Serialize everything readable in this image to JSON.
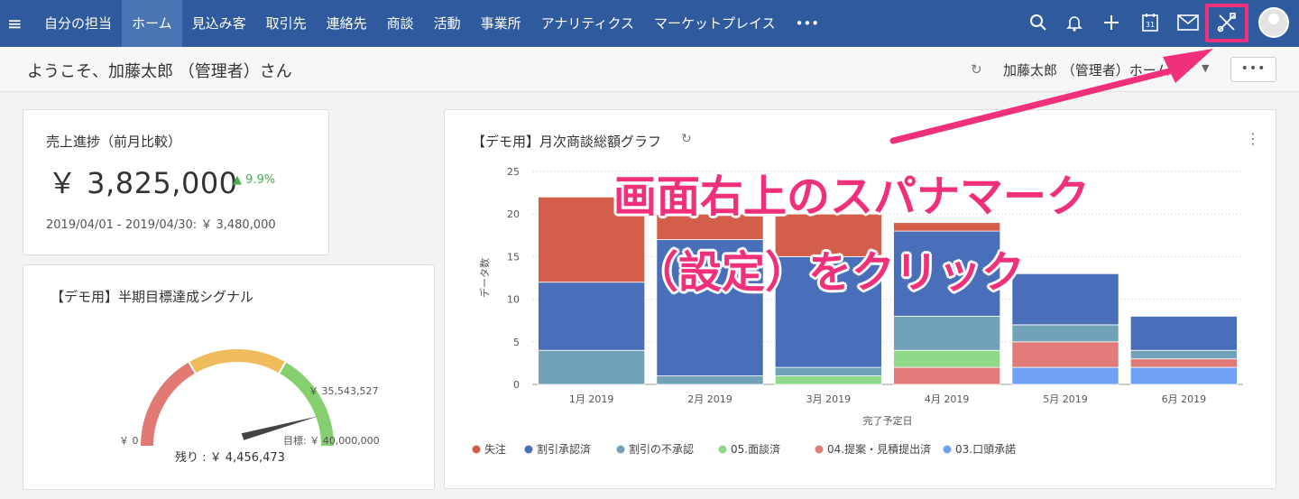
{
  "topbar": {
    "menu_icon": "hamburger-icon",
    "nav": [
      "自分の担当",
      "ホーム",
      "見込み客",
      "取引先",
      "連絡先",
      "商談",
      "活動",
      "事業所",
      "アナリティクス",
      "マーケットプレイス",
      "•••"
    ],
    "active_index": 1,
    "icons": [
      "search-icon",
      "bell-icon",
      "plus-icon",
      "calendar-icon",
      "mail-icon",
      "wrench-screwdriver-icon",
      "avatar"
    ],
    "calendar_day": "31",
    "highlight_color": "#f0307a"
  },
  "subbar": {
    "welcome": "ようこそ、加藤太郎 （管理者）さん",
    "user_menu": "加藤太郎 （管理者）ホーム",
    "more_label": "•••"
  },
  "sales_card": {
    "title": "売上進捗（前月比較）",
    "value": "￥ 3,825,000",
    "change": "▲ 9.9%",
    "comparison": "2019/04/01 - 2019/04/30: ￥ 3,480,000"
  },
  "gauge_card": {
    "title": "【デモ用】半期目標達成シグナル",
    "min_label": "￥ 0",
    "current_label": "￥ 35,543,527",
    "target_label": "目標: ￥ 40,000,000",
    "remaining_label": "残り : ￥ 4,456,473",
    "current_value": 35543527,
    "target_value": 40000000,
    "band_colors": [
      "#e07a72",
      "#f0bb5c",
      "#85cf6f"
    ]
  },
  "chart_card": {
    "title": "【デモ用】月次商談総額グラフ",
    "refresh_icon": "refresh-icon",
    "menu_icon": "kebab-menu-icon"
  },
  "chart_data": {
    "type": "bar",
    "stacked": true,
    "categories": [
      "1月 2019",
      "2月 2019",
      "3月 2019",
      "4月 2019",
      "5月 2019",
      "6月 2019"
    ],
    "series": [
      {
        "name": "03.口頭承諾",
        "color": "#6fa2f4",
        "values": [
          0,
          0,
          0,
          0,
          2,
          2
        ]
      },
      {
        "name": "04.提案・見積提出済",
        "color": "#e07b78",
        "values": [
          0,
          0,
          0,
          2,
          3,
          1
        ]
      },
      {
        "name": "05.面談済",
        "color": "#8fd98a",
        "values": [
          0,
          0,
          1,
          2,
          0,
          0
        ]
      },
      {
        "name": "割引の不承認",
        "color": "#72a2b9",
        "values": [
          4,
          1,
          1,
          4,
          2,
          1
        ]
      },
      {
        "name": "割引承認済",
        "color": "#4a6fba",
        "values": [
          8,
          16,
          13,
          10,
          6,
          4
        ]
      },
      {
        "name": "失注",
        "color": "#d35f4a",
        "values": [
          10,
          3,
          5,
          1,
          0,
          0
        ]
      }
    ],
    "legend_order": [
      "失注",
      "割引承認済",
      "割引の不承認",
      "05.面談済",
      "04.提案・見積提出済",
      "03.口頭承諾"
    ],
    "xlabel": "完了予定日",
    "ylabel": "データ数",
    "ylim": [
      0,
      25
    ],
    "yticks": [
      0,
      5,
      10,
      15,
      20,
      25
    ],
    "grid": true,
    "legend_position": "bottom"
  },
  "annotation": {
    "line1": "画面右上のスパナマーク",
    "line2": "（設定）をクリック",
    "color": "#f0307a"
  }
}
